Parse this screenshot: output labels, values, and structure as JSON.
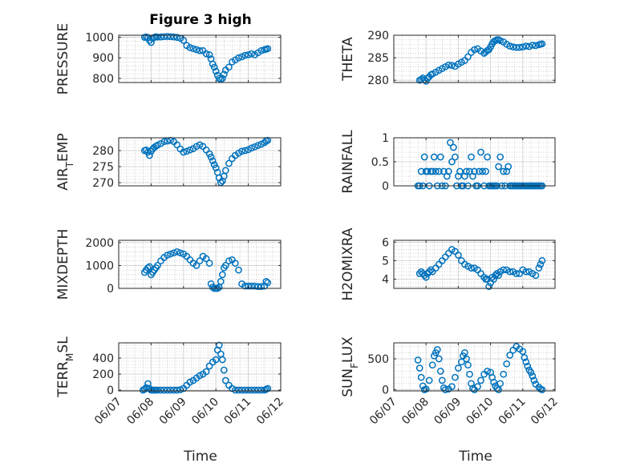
{
  "figure": {
    "title": "Figure 3 high",
    "xlabel": "Time",
    "marker_color": "#0072BD",
    "axis_color": "#262626",
    "grid_color": "#b0b0b0"
  },
  "x_ticks": [
    "06/07",
    "06/08",
    "06/09",
    "06/10",
    "06/11",
    "06/12"
  ],
  "chart_data": [
    {
      "type": "scatter",
      "ylabel": "PRESSURE",
      "title": "Figure 3 high",
      "xlim": [
        "06/07",
        "06/12"
      ],
      "ylim": [
        780,
        1010
      ],
      "yticks": [
        800,
        900,
        1000
      ],
      "grid": true,
      "marker": "open-circle",
      "x": [
        7.8,
        7.85,
        7.9,
        7.95,
        8.0,
        8.05,
        8.1,
        8.15,
        8.2,
        8.3,
        8.4,
        8.5,
        8.6,
        8.7,
        8.8,
        8.9,
        9.0,
        9.1,
        9.2,
        9.3,
        9.4,
        9.5,
        9.6,
        9.7,
        9.8,
        9.85,
        9.9,
        9.95,
        10.0,
        10.05,
        10.1,
        10.15,
        10.2,
        10.25,
        10.3,
        10.4,
        10.5,
        10.6,
        10.7,
        10.8,
        10.9,
        11.0,
        11.1,
        11.2,
        11.3,
        11.4,
        11.5,
        11.55,
        11.6
      ],
      "values": [
        1000,
        1002,
        999,
        985,
        975,
        995,
        1000,
        1003,
        1001,
        1002,
        1003,
        1004,
        1003,
        1002,
        1000,
        995,
        985,
        960,
        950,
        945,
        940,
        935,
        935,
        920,
        915,
        895,
        870,
        855,
        835,
        815,
        800,
        795,
        800,
        820,
        840,
        855,
        880,
        890,
        900,
        905,
        912,
        915,
        920,
        915,
        925,
        935,
        940,
        942,
        945
      ]
    },
    {
      "type": "scatter",
      "ylabel": "THETA",
      "xlim": [
        "06/07",
        "06/12"
      ],
      "ylim": [
        279.5,
        290
      ],
      "yticks": [
        280,
        285,
        290
      ],
      "grid": true,
      "marker": "open-circle",
      "x": [
        7.8,
        7.85,
        7.9,
        7.95,
        8.0,
        8.05,
        8.1,
        8.15,
        8.2,
        8.3,
        8.4,
        8.5,
        8.6,
        8.7,
        8.8,
        8.9,
        9.0,
        9.1,
        9.2,
        9.3,
        9.4,
        9.5,
        9.6,
        9.7,
        9.8,
        9.85,
        9.9,
        9.95,
        10.0,
        10.05,
        10.1,
        10.15,
        10.2,
        10.25,
        10.3,
        10.4,
        10.5,
        10.6,
        10.7,
        10.8,
        10.9,
        11.0,
        11.1,
        11.2,
        11.3,
        11.4,
        11.5,
        11.55,
        11.6
      ],
      "values": [
        280,
        280.2,
        280.5,
        280.1,
        279.8,
        280.4,
        280.8,
        281.2,
        281.4,
        281.8,
        282.2,
        282.6,
        283,
        283.4,
        283.3,
        283.1,
        283.6,
        284,
        284.4,
        285.2,
        286.2,
        286.8,
        287,
        286.5,
        286,
        286.3,
        286.6,
        286.8,
        287.4,
        288.1,
        288.6,
        288.8,
        289,
        289,
        288.8,
        288.5,
        288,
        287.6,
        287.4,
        287.3,
        287.3,
        287.4,
        287.6,
        287.5,
        287.8,
        287.7,
        287.9,
        288,
        288.1
      ]
    },
    {
      "type": "scatter",
      "ylabel": "AIR_TEMP",
      "xlim": [
        "06/07",
        "06/12"
      ],
      "ylim": [
        269,
        284
      ],
      "yticks": [
        270,
        275,
        280
      ],
      "grid": true,
      "marker": "open-circle",
      "x": [
        7.8,
        7.85,
        7.9,
        7.95,
        8.0,
        8.05,
        8.1,
        8.15,
        8.2,
        8.3,
        8.4,
        8.5,
        8.6,
        8.7,
        8.8,
        8.9,
        9.0,
        9.1,
        9.2,
        9.3,
        9.4,
        9.5,
        9.6,
        9.7,
        9.8,
        9.85,
        9.9,
        9.95,
        10.0,
        10.05,
        10.1,
        10.15,
        10.2,
        10.25,
        10.3,
        10.4,
        10.5,
        10.6,
        10.7,
        10.8,
        10.9,
        11.0,
        11.1,
        11.2,
        11.3,
        11.4,
        11.5,
        11.55,
        11.6
      ],
      "values": [
        280,
        280.2,
        279.5,
        278.5,
        279.8,
        280.5,
        281,
        281.4,
        281.7,
        282.2,
        282.8,
        283,
        283.2,
        282.8,
        281.8,
        280.5,
        279.5,
        279.8,
        280.2,
        280.6,
        281.3,
        281.8,
        281.3,
        280.2,
        279,
        278,
        276.8,
        275.6,
        274.6,
        273.2,
        271.5,
        270,
        270.5,
        272,
        273.8,
        276,
        277.5,
        278.5,
        279.2,
        279.8,
        280,
        280.3,
        280.8,
        281.2,
        281.6,
        282,
        282.5,
        283,
        283.2
      ]
    },
    {
      "type": "scatter",
      "ylabel": "RAINFALL",
      "xlim": [
        "06/07",
        "06/12"
      ],
      "ylim": [
        0,
        1
      ],
      "yticks": [
        0,
        0.5,
        1
      ],
      "grid": true,
      "marker": "open-circle",
      "x": [
        7.75,
        7.8,
        7.85,
        7.9,
        7.95,
        8.0,
        8.05,
        8.1,
        8.15,
        8.2,
        8.25,
        8.3,
        8.35,
        8.4,
        8.45,
        8.5,
        8.55,
        8.6,
        8.65,
        8.7,
        8.75,
        8.8,
        8.85,
        8.9,
        8.95,
        9.0,
        9.05,
        9.1,
        9.15,
        9.2,
        9.25,
        9.3,
        9.35,
        9.4,
        9.45,
        9.5,
        9.55,
        9.6,
        9.65,
        9.7,
        9.75,
        9.8,
        9.85,
        9.9,
        9.95,
        10.0,
        10.05,
        10.1,
        10.15,
        10.2,
        10.25,
        10.3,
        10.35,
        10.4,
        10.45,
        10.5,
        10.55,
        10.6,
        10.65,
        10.7,
        10.75,
        10.8,
        10.85,
        10.9,
        10.95,
        11.0,
        11.05,
        11.1,
        11.15,
        11.2,
        11.25,
        11.3,
        11.35,
        11.4,
        11.45,
        11.5,
        11.55,
        11.6
      ],
      "values": [
        0,
        0,
        0.3,
        0,
        0.6,
        0.3,
        0.3,
        0,
        0.3,
        0.3,
        0.6,
        0.3,
        0,
        0.3,
        0.6,
        0,
        0.3,
        0,
        0.2,
        0.3,
        0.9,
        0.5,
        0.8,
        0.6,
        0,
        0.2,
        0.3,
        0,
        0,
        0.2,
        0.3,
        0,
        0.3,
        0.6,
        0.2,
        0.3,
        0,
        0,
        0.3,
        0.7,
        0.3,
        0,
        0.3,
        0.6,
        0,
        0,
        0,
        0,
        0,
        0,
        0.4,
        0.6,
        0,
        0.3,
        0,
        0.3,
        0.4,
        0,
        0,
        0,
        0,
        0,
        0,
        0,
        0,
        0,
        0,
        0,
        0,
        0,
        0,
        0,
        0,
        0,
        0,
        0,
        0,
        0
      ]
    },
    {
      "type": "scatter",
      "ylabel": "MIXDEPTH",
      "xlim": [
        "06/07",
        "06/12"
      ],
      "ylim": [
        0,
        2100
      ],
      "yticks": [
        0,
        1000,
        2000
      ],
      "grid": true,
      "marker": "open-circle",
      "x": [
        7.8,
        7.85,
        7.9,
        7.95,
        8.0,
        8.05,
        8.1,
        8.15,
        8.2,
        8.3,
        8.4,
        8.5,
        8.6,
        8.7,
        8.8,
        8.9,
        9.0,
        9.1,
        9.2,
        9.3,
        9.4,
        9.5,
        9.6,
        9.7,
        9.8,
        9.85,
        9.9,
        9.95,
        10.0,
        10.05,
        10.1,
        10.15,
        10.2,
        10.25,
        10.3,
        10.4,
        10.5,
        10.6,
        10.7,
        10.8,
        10.9,
        11.0,
        11.1,
        11.2,
        11.3,
        11.4,
        11.5,
        11.55,
        11.6
      ],
      "values": [
        700,
        800,
        900,
        950,
        600,
        700,
        800,
        900,
        1000,
        1200,
        1350,
        1450,
        1500,
        1550,
        1600,
        1550,
        1500,
        1400,
        1250,
        1100,
        1000,
        1200,
        1400,
        1300,
        1100,
        200,
        50,
        0,
        0,
        0,
        50,
        300,
        600,
        900,
        1000,
        1200,
        1250,
        1100,
        800,
        200,
        100,
        100,
        100,
        100,
        80,
        80,
        100,
        300,
        250
      ]
    },
    {
      "type": "scatter",
      "ylabel": "H2OMIXRA",
      "xlim": [
        "06/07",
        "06/12"
      ],
      "ylim": [
        3.5,
        6.1
      ],
      "yticks": [
        4,
        5,
        6
      ],
      "grid": true,
      "marker": "open-circle",
      "x": [
        7.8,
        7.85,
        7.9,
        7.95,
        8.0,
        8.05,
        8.1,
        8.15,
        8.2,
        8.3,
        8.4,
        8.5,
        8.6,
        8.7,
        8.8,
        8.9,
        9.0,
        9.1,
        9.2,
        9.3,
        9.4,
        9.5,
        9.6,
        9.7,
        9.8,
        9.85,
        9.9,
        9.95,
        10.0,
        10.05,
        10.1,
        10.15,
        10.2,
        10.25,
        10.3,
        10.4,
        10.5,
        10.6,
        10.7,
        10.8,
        10.9,
        11.0,
        11.1,
        11.2,
        11.3,
        11.4,
        11.5,
        11.55,
        11.6
      ],
      "values": [
        4.3,
        4.4,
        4.3,
        4.2,
        4.1,
        4.3,
        4.4,
        4.5,
        4.4,
        4.6,
        4.8,
        5.0,
        5.2,
        5.4,
        5.6,
        5.5,
        5.3,
        5.0,
        4.8,
        4.7,
        4.6,
        4.6,
        4.5,
        4.3,
        4.1,
        4.0,
        4.0,
        3.6,
        3.8,
        4.1,
        4.0,
        4.2,
        4.3,
        4.2,
        4.4,
        4.5,
        4.5,
        4.4,
        4.4,
        4.3,
        4.3,
        4.5,
        4.4,
        4.4,
        4.3,
        4.2,
        4.6,
        4.8,
        5.0
      ]
    },
    {
      "type": "scatter",
      "ylabel": "TERR_MSL",
      "xlim": [
        "06/07",
        "06/12"
      ],
      "ylim": [
        -10,
        590
      ],
      "yticks": [
        0,
        200,
        400
      ],
      "grid": true,
      "marker": "open-circle",
      "x": [
        7.75,
        7.8,
        7.85,
        7.9,
        7.95,
        8.0,
        8.05,
        8.1,
        8.15,
        8.2,
        8.3,
        8.4,
        8.5,
        8.6,
        8.7,
        8.8,
        8.9,
        9.0,
        9.1,
        9.2,
        9.3,
        9.4,
        9.5,
        9.6,
        9.7,
        9.8,
        9.9,
        10.0,
        10.05,
        10.1,
        10.15,
        10.2,
        10.25,
        10.3,
        10.4,
        10.5,
        10.6,
        10.7,
        10.8,
        10.9,
        11.0,
        11.1,
        11.2,
        11.3,
        11.4,
        11.5,
        11.55,
        11.6
      ],
      "values": [
        0,
        10,
        30,
        80,
        20,
        0,
        0,
        0,
        0,
        0,
        0,
        0,
        0,
        0,
        0,
        0,
        5,
        20,
        60,
        100,
        120,
        150,
        180,
        200,
        230,
        300,
        350,
        380,
        500,
        560,
        450,
        380,
        250,
        120,
        60,
        20,
        0,
        0,
        0,
        0,
        0,
        0,
        0,
        0,
        0,
        0,
        10,
        20
      ]
    },
    {
      "type": "scatter",
      "ylabel": "SUN_FLUX",
      "xlim": [
        "06/07",
        "06/12"
      ],
      "ylim": [
        -20,
        760
      ],
      "yticks": [
        0,
        500
      ],
      "grid": true,
      "marker": "open-circle",
      "x": [
        7.75,
        7.8,
        7.85,
        7.9,
        7.95,
        8.0,
        8.1,
        8.2,
        8.25,
        8.3,
        8.35,
        8.4,
        8.45,
        8.5,
        8.55,
        8.6,
        8.7,
        8.8,
        8.9,
        9.0,
        9.1,
        9.15,
        9.2,
        9.25,
        9.3,
        9.35,
        9.4,
        9.45,
        9.5,
        9.6,
        9.7,
        9.8,
        9.9,
        10.0,
        10.05,
        10.1,
        10.15,
        10.2,
        10.25,
        10.3,
        10.4,
        10.5,
        10.6,
        10.7,
        10.8,
        10.9,
        11.0,
        11.05,
        11.1,
        11.15,
        11.2,
        11.25,
        11.3,
        11.35,
        11.4,
        11.5,
        11.55,
        11.6
      ],
      "values": [
        480,
        350,
        200,
        60,
        0,
        10,
        150,
        400,
        550,
        600,
        650,
        500,
        300,
        150,
        30,
        0,
        10,
        50,
        200,
        350,
        450,
        550,
        600,
        500,
        400,
        250,
        100,
        20,
        0,
        50,
        150,
        250,
        300,
        280,
        200,
        120,
        60,
        20,
        0,
        100,
        250,
        420,
        560,
        640,
        700,
        660,
        620,
        520,
        450,
        380,
        320,
        280,
        220,
        150,
        90,
        40,
        10,
        0
      ]
    }
  ]
}
